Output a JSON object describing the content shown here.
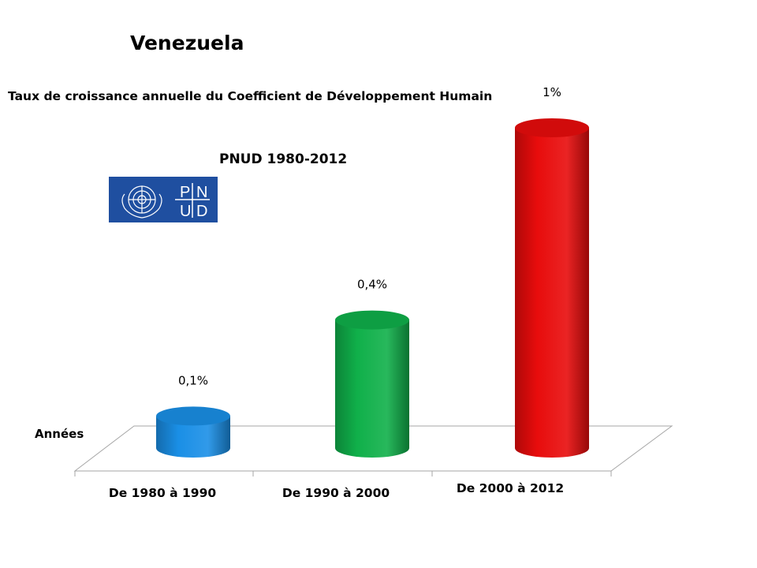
{
  "title": "Venezuela",
  "subtitle": "Taux de croissance annuelle du Coefficient de Développement Humain",
  "source": "PNUD 1980-2012",
  "logo": {
    "letters": [
      "P",
      "N",
      "U",
      "D"
    ],
    "background": "#1f4fa0"
  },
  "chart_data": {
    "type": "bar",
    "style": "3d-cylinder",
    "title": "Venezuela",
    "subtitle": "Taux de croissance annuelle du Coefficient de Développement Humain",
    "ylabel": "Années",
    "categories": [
      "De 1980 à 1990",
      "De 1990 à 2000",
      "De 2000 à 2012"
    ],
    "values": [
      0.1,
      0.4,
      1.0
    ],
    "data_labels": [
      "0,1%",
      "0,4%",
      "1%"
    ],
    "unit": "%",
    "ylim": [
      0,
      1.0
    ],
    "colors": [
      "#1a8fe6",
      "#10b04a",
      "#e80c0c"
    ],
    "grid": false,
    "legend": "none"
  }
}
